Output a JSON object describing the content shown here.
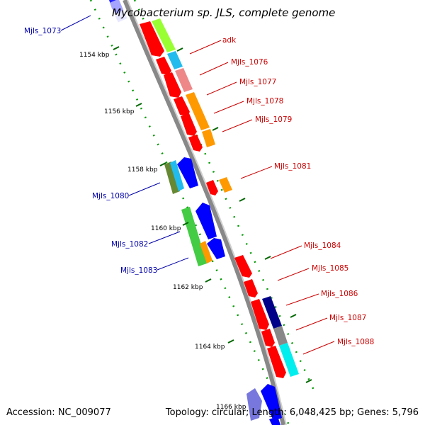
{
  "title": "Mycobacterium sp. JLS, complete genome",
  "footer": {
    "accession": "Accession: NC_009077",
    "summary": "Topology: circular; Length: 6,048,425 bp; Genes: 5,796"
  },
  "colors": {
    "forward_label": "#cc0000",
    "reverse_label": "#0000aa",
    "backbone": "#888888",
    "backbone_light": "#bbbbbb",
    "tick_dots": "#009900",
    "tick_major": "#006600"
  },
  "ticks": [
    "1154 kbp",
    "1156 kbp",
    "1158 kbp",
    "1160 kbp",
    "1162 kbp",
    "1164 kbp",
    "1166 kbp"
  ],
  "forward_genes": [
    {
      "label": "adk",
      "color": "#ff0000"
    },
    {
      "label": "Mjls_1076",
      "color": "#ff0000"
    },
    {
      "label": "Mjls_1077",
      "color": "#ff0000"
    },
    {
      "label": "Mjls_1078",
      "color": "#ff0000"
    },
    {
      "label": "Mjls_1079",
      "color": "#ff0000"
    },
    {
      "label": "Mjls_1081",
      "color": "#ff0000"
    },
    {
      "label": "Mjls_1084",
      "color": "#ff0000"
    },
    {
      "label": "Mjls_1085",
      "color": "#ff0000"
    },
    {
      "label": "Mjls_1086",
      "color": "#ff0000"
    },
    {
      "label": "Mjls_1087",
      "color": "#ff0000"
    },
    {
      "label": "Mjls_1088",
      "color": "#ff0000"
    }
  ],
  "reverse_genes": [
    {
      "label": "Mjls_1073",
      "color": "#0000ff"
    },
    {
      "label": "Mjls_1080",
      "color": "#0000ff"
    },
    {
      "label": "Mjls_1082",
      "color": "#0000ff"
    },
    {
      "label": "Mjls_1083",
      "color": "#0000ff"
    }
  ],
  "cog_colors": [
    "#99ff33",
    "#22bbee",
    "#ee8888",
    "#ff9900",
    "#668833",
    "#44cc44",
    "#000088",
    "#888888",
    "#00eeee",
    "#7777dd"
  ]
}
